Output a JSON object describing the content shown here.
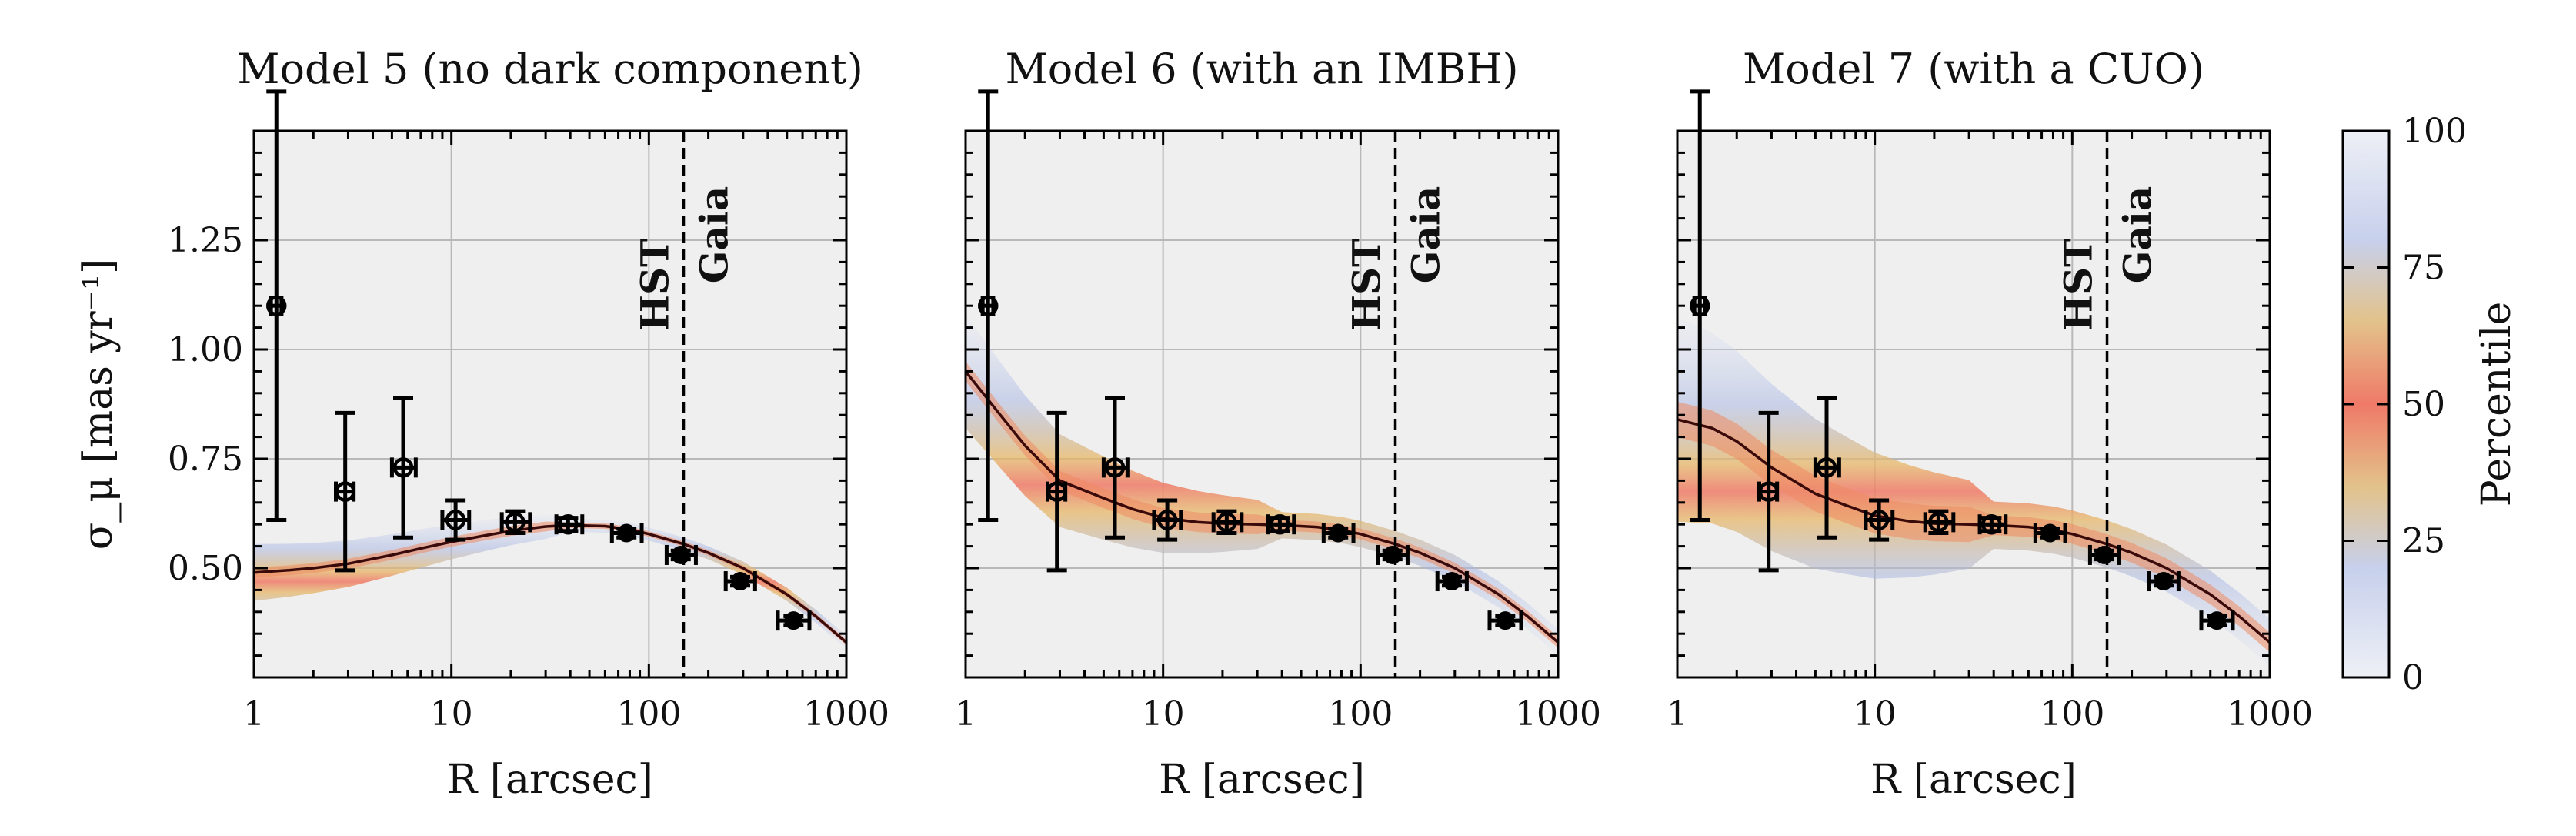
{
  "chart_data": [
    {
      "type": "line",
      "title": "Model 5 (no dark component)",
      "xlabel": "R [arcsec]",
      "ylabel": "σ_μ [mas yr⁻¹]",
      "xscale": "log",
      "xlim": [
        1,
        1000
      ],
      "ylim": [
        0.25,
        1.5
      ],
      "xticks": [
        "1",
        "10",
        "100",
        "1000"
      ],
      "yticks": [
        "0.50",
        "0.75",
        "1.00",
        "1.25"
      ],
      "grid": true,
      "vline": {
        "x": 150,
        "labels": [
          "HST",
          "Gaia"
        ]
      },
      "model": {
        "x": [
          1,
          1.5,
          2,
          3,
          5,
          7,
          10,
          15,
          20,
          30,
          40,
          60,
          80,
          100,
          150,
          200,
          300,
          500,
          700,
          1000
        ],
        "y": [
          0.49,
          0.495,
          0.5,
          0.51,
          0.53,
          0.545,
          0.56,
          0.575,
          0.585,
          0.595,
          0.598,
          0.596,
          0.588,
          0.578,
          0.555,
          0.535,
          0.5,
          0.44,
          0.39,
          0.33
        ],
        "band_halfwidth": 0.025
      },
      "hst_points": [
        {
          "x": 1.3,
          "y": 1.1,
          "yerr": 0.49,
          "xerr": [
            0.08,
            0.08
          ]
        },
        {
          "x": 2.9,
          "y": 0.675,
          "yerr": 0.18,
          "xerr": [
            0.3,
            0.3
          ]
        },
        {
          "x": 5.7,
          "y": 0.73,
          "yerr": 0.16,
          "xerr": [
            0.7,
            0.9
          ]
        },
        {
          "x": 10.5,
          "y": 0.61,
          "yerr": 0.045,
          "xerr": [
            1.5,
            1.8
          ]
        },
        {
          "x": 21,
          "y": 0.605,
          "yerr": 0.025,
          "xerr": [
            3,
            4
          ]
        },
        {
          "x": 39,
          "y": 0.6,
          "yerr": 0.015,
          "xerr": [
            5,
            7
          ]
        }
      ],
      "gaia_points": [
        {
          "x": 77,
          "y": 0.58,
          "yerr": 0.01,
          "xerr": [
            12,
            15
          ]
        },
        {
          "x": 145,
          "y": 0.53,
          "yerr": 0.01,
          "xerr": [
            22,
            28
          ]
        },
        {
          "x": 290,
          "y": 0.47,
          "yerr": 0.01,
          "xerr": [
            45,
            55
          ]
        },
        {
          "x": 540,
          "y": 0.38,
          "yerr": 0.01,
          "xerr": [
            90,
            110
          ]
        }
      ]
    },
    {
      "type": "line",
      "title": "Model 6 (with an IMBH)",
      "xlabel": "R [arcsec]",
      "xscale": "log",
      "xlim": [
        1,
        1000
      ],
      "ylim": [
        0.25,
        1.5
      ],
      "xticks": [
        "1",
        "10",
        "100",
        "1000"
      ],
      "grid": true,
      "vline": {
        "x": 150,
        "labels": [
          "HST",
          "Gaia"
        ]
      },
      "model": {
        "x": [
          1,
          1.5,
          2,
          3,
          5,
          7,
          10,
          15,
          20,
          30,
          40,
          60,
          80,
          100,
          150,
          200,
          300,
          500,
          700,
          1000
        ],
        "y": [
          0.95,
          0.85,
          0.78,
          0.7,
          0.66,
          0.635,
          0.615,
          0.605,
          0.602,
          0.6,
          0.598,
          0.594,
          0.587,
          0.578,
          0.555,
          0.535,
          0.5,
          0.44,
          0.39,
          0.33
        ],
        "band_halfwidth": 0.05
      },
      "hst_points": [
        {
          "x": 1.3,
          "y": 1.1,
          "yerr": 0.49,
          "xerr": [
            0.08,
            0.08
          ]
        },
        {
          "x": 2.9,
          "y": 0.675,
          "yerr": 0.18,
          "xerr": [
            0.3,
            0.3
          ]
        },
        {
          "x": 5.7,
          "y": 0.73,
          "yerr": 0.16,
          "xerr": [
            0.7,
            0.9
          ]
        },
        {
          "x": 10.5,
          "y": 0.61,
          "yerr": 0.045,
          "xerr": [
            1.5,
            1.8
          ]
        },
        {
          "x": 21,
          "y": 0.605,
          "yerr": 0.025,
          "xerr": [
            3,
            4
          ]
        },
        {
          "x": 39,
          "y": 0.6,
          "yerr": 0.015,
          "xerr": [
            5,
            7
          ]
        }
      ],
      "gaia_points": [
        {
          "x": 77,
          "y": 0.58,
          "yerr": 0.01,
          "xerr": [
            12,
            15
          ]
        },
        {
          "x": 145,
          "y": 0.53,
          "yerr": 0.01,
          "xerr": [
            22,
            28
          ]
        },
        {
          "x": 290,
          "y": 0.47,
          "yerr": 0.01,
          "xerr": [
            45,
            55
          ]
        },
        {
          "x": 540,
          "y": 0.38,
          "yerr": 0.01,
          "xerr": [
            90,
            110
          ]
        }
      ]
    },
    {
      "type": "line",
      "title": "Model 7 (with a CUO)",
      "xlabel": "R [arcsec]",
      "xscale": "log",
      "xlim": [
        1,
        1000
      ],
      "ylim": [
        0.25,
        1.5
      ],
      "xticks": [
        "1",
        "10",
        "100",
        "1000"
      ],
      "grid": true,
      "vline": {
        "x": 150,
        "labels": [
          "HST",
          "Gaia"
        ]
      },
      "model": {
        "x": [
          1,
          1.5,
          2,
          3,
          5,
          7,
          10,
          15,
          20,
          30,
          40,
          60,
          80,
          100,
          150,
          200,
          300,
          500,
          700,
          1000
        ],
        "y": [
          0.84,
          0.82,
          0.79,
          0.73,
          0.67,
          0.645,
          0.62,
          0.607,
          0.602,
          0.6,
          0.598,
          0.594,
          0.587,
          0.578,
          0.555,
          0.535,
          0.5,
          0.44,
          0.39,
          0.33
        ],
        "band_halfwidth": 0.09
      },
      "hst_points": [
        {
          "x": 1.3,
          "y": 1.1,
          "yerr": 0.49,
          "xerr": [
            0.08,
            0.08
          ]
        },
        {
          "x": 2.9,
          "y": 0.675,
          "yerr": 0.18,
          "xerr": [
            0.3,
            0.3
          ]
        },
        {
          "x": 5.7,
          "y": 0.73,
          "yerr": 0.16,
          "xerr": [
            0.7,
            0.9
          ]
        },
        {
          "x": 10.5,
          "y": 0.61,
          "yerr": 0.045,
          "xerr": [
            1.5,
            1.8
          ]
        },
        {
          "x": 21,
          "y": 0.605,
          "yerr": 0.025,
          "xerr": [
            3,
            4
          ]
        },
        {
          "x": 39,
          "y": 0.6,
          "yerr": 0.015,
          "xerr": [
            5,
            7
          ]
        }
      ],
      "gaia_points": [
        {
          "x": 77,
          "y": 0.58,
          "yerr": 0.01,
          "xerr": [
            12,
            15
          ]
        },
        {
          "x": 145,
          "y": 0.53,
          "yerr": 0.01,
          "xerr": [
            22,
            28
          ]
        },
        {
          "x": 290,
          "y": 0.47,
          "yerr": 0.01,
          "xerr": [
            45,
            55
          ]
        },
        {
          "x": 540,
          "y": 0.38,
          "yerr": 0.01,
          "xerr": [
            90,
            110
          ]
        }
      ]
    }
  ],
  "colorbar": {
    "label": "Percentile",
    "ticks": [
      "0",
      "25",
      "50",
      "75",
      "100"
    ],
    "range": [
      0,
      100
    ],
    "colors": [
      "#eef0f6",
      "#a9b8e4",
      "#e7b86a",
      "#ef7a68",
      "#e7b86a",
      "#a9b8e4",
      "#eef0f6"
    ]
  },
  "colors": {
    "axes_bg": "#efefef",
    "grid": "#b8b8b8",
    "data": "#000000",
    "model_line": "#3a0a0a"
  }
}
